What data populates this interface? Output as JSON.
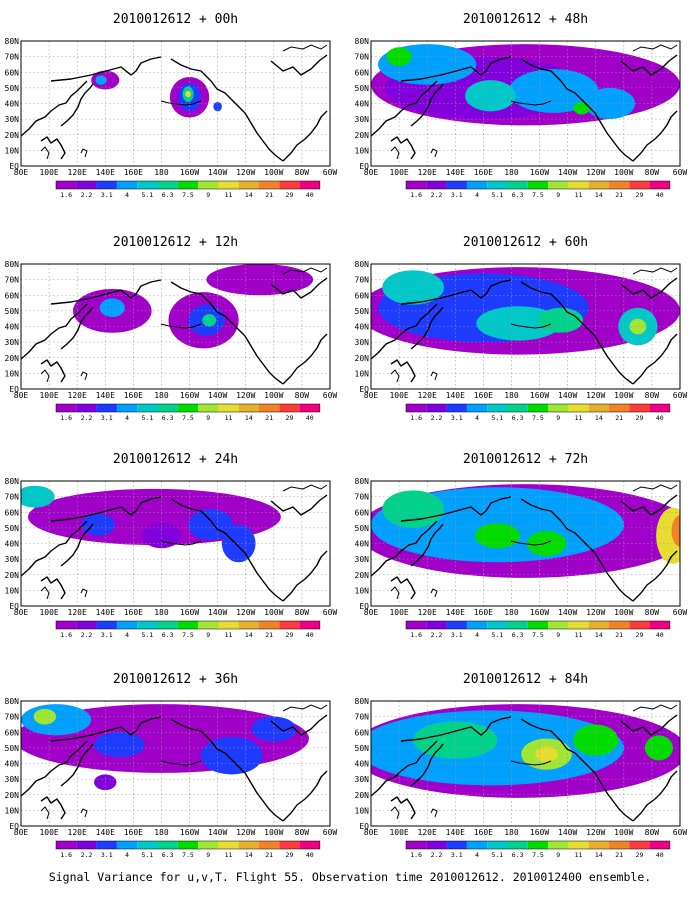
{
  "figure": {
    "caption": "Signal Variance for u,v,T. Flight 55. Observation time 2010012612. 2010012400 ensemble."
  },
  "map": {
    "x_ticks": [
      "80E",
      "100E",
      "120E",
      "140E",
      "160E",
      "180",
      "160W",
      "140W",
      "120W",
      "100W",
      "80W",
      "60W"
    ],
    "x_tick_lons": [
      80,
      100,
      120,
      140,
      160,
      180,
      200,
      220,
      240,
      260,
      280,
      300
    ],
    "y_ticks": [
      "EQ",
      "10N",
      "20N",
      "30N",
      "40N",
      "50N",
      "60N",
      "70N",
      "80N"
    ],
    "lon_range": [
      80,
      300
    ],
    "lat_range": [
      0,
      80
    ]
  },
  "colorbar": {
    "labels": [
      "1.6",
      "2.2",
      "3.1",
      "4",
      "5.1",
      "6.3",
      "7.5",
      "9",
      "11",
      "14",
      "21",
      "29",
      "40"
    ],
    "colors": [
      "#a000c8",
      "#8200dc",
      "#1e3cff",
      "#00a0ff",
      "#00c8c8",
      "#00d28c",
      "#00dc00",
      "#a0e632",
      "#e6dc32",
      "#e6af2d",
      "#f08228",
      "#fa3c3c",
      "#f00082"
    ]
  },
  "panels": [
    {
      "title": "2010012612 + 00h",
      "blobs": [
        {
          "lon": 140,
          "lat": 55,
          "rx": 10,
          "ry": 6,
          "level": 0
        },
        {
          "lon": 137,
          "lat": 55,
          "rx": 4,
          "ry": 3,
          "level": 3
        },
        {
          "lon": 200,
          "lat": 44,
          "rx": 14,
          "ry": 13,
          "level": 0
        },
        {
          "lon": 200,
          "lat": 44,
          "rx": 8,
          "ry": 9,
          "level": 2
        },
        {
          "lon": 199,
          "lat": 46,
          "rx": 4,
          "ry": 5,
          "level": 5
        },
        {
          "lon": 199,
          "lat": 46,
          "rx": 2,
          "ry": 2,
          "level": 8
        },
        {
          "lon": 220,
          "lat": 38,
          "rx": 3,
          "ry": 3,
          "level": 2
        }
      ]
    },
    {
      "title": "2010012612 + 48h",
      "blobs": [
        {
          "lon": 190,
          "lat": 52,
          "rx": 110,
          "ry": 26,
          "level": 0
        },
        {
          "lon": 160,
          "lat": 50,
          "rx": 70,
          "ry": 20,
          "level": 1
        },
        {
          "lon": 120,
          "lat": 65,
          "rx": 35,
          "ry": 13,
          "level": 3
        },
        {
          "lon": 100,
          "lat": 70,
          "rx": 9,
          "ry": 6,
          "level": 6
        },
        {
          "lon": 210,
          "lat": 48,
          "rx": 32,
          "ry": 14,
          "level": 3
        },
        {
          "lon": 165,
          "lat": 45,
          "rx": 18,
          "ry": 10,
          "level": 4
        },
        {
          "lon": 250,
          "lat": 40,
          "rx": 18,
          "ry": 10,
          "level": 3
        },
        {
          "lon": 230,
          "lat": 37,
          "rx": 6,
          "ry": 4,
          "level": 6
        }
      ]
    },
    {
      "title": "2010012612 + 12h",
      "blobs": [
        {
          "lon": 145,
          "lat": 50,
          "rx": 28,
          "ry": 14,
          "level": 0
        },
        {
          "lon": 145,
          "lat": 52,
          "rx": 9,
          "ry": 6,
          "level": 3
        },
        {
          "lon": 210,
          "lat": 44,
          "rx": 25,
          "ry": 18,
          "level": 0
        },
        {
          "lon": 212,
          "lat": 44,
          "rx": 13,
          "ry": 10,
          "level": 2
        },
        {
          "lon": 214,
          "lat": 44,
          "rx": 5,
          "ry": 4,
          "level": 5
        },
        {
          "lon": 250,
          "lat": 70,
          "rx": 38,
          "ry": 10,
          "level": 0
        }
      ]
    },
    {
      "title": "2010012612 + 60h",
      "blobs": [
        {
          "lon": 185,
          "lat": 50,
          "rx": 115,
          "ry": 28,
          "level": 0
        },
        {
          "lon": 160,
          "lat": 52,
          "rx": 75,
          "ry": 22,
          "level": 2
        },
        {
          "lon": 110,
          "lat": 65,
          "rx": 22,
          "ry": 11,
          "level": 4
        },
        {
          "lon": 185,
          "lat": 42,
          "rx": 30,
          "ry": 11,
          "level": 4
        },
        {
          "lon": 215,
          "lat": 44,
          "rx": 16,
          "ry": 8,
          "level": 5
        },
        {
          "lon": 270,
          "lat": 40,
          "rx": 14,
          "ry": 12,
          "level": 4
        },
        {
          "lon": 270,
          "lat": 40,
          "rx": 6,
          "ry": 5,
          "level": 7
        }
      ]
    },
    {
      "title": "2010012612 + 24h",
      "blobs": [
        {
          "lon": 175,
          "lat": 57,
          "rx": 90,
          "ry": 18,
          "level": 0
        },
        {
          "lon": 90,
          "lat": 70,
          "rx": 14,
          "ry": 7,
          "level": 4
        },
        {
          "lon": 135,
          "lat": 52,
          "rx": 12,
          "ry": 7,
          "level": 2
        },
        {
          "lon": 215,
          "lat": 52,
          "rx": 16,
          "ry": 10,
          "level": 2
        },
        {
          "lon": 235,
          "lat": 40,
          "rx": 12,
          "ry": 12,
          "level": 2
        },
        {
          "lon": 180,
          "lat": 45,
          "rx": 14,
          "ry": 8,
          "level": 1
        }
      ]
    },
    {
      "title": "2010012612 + 72h",
      "blobs": [
        {
          "lon": 190,
          "lat": 48,
          "rx": 120,
          "ry": 30,
          "level": 0
        },
        {
          "lon": 170,
          "lat": 52,
          "rx": 90,
          "ry": 24,
          "level": 3
        },
        {
          "lon": 110,
          "lat": 62,
          "rx": 22,
          "ry": 12,
          "level": 5
        },
        {
          "lon": 170,
          "lat": 45,
          "rx": 16,
          "ry": 8,
          "level": 6
        },
        {
          "lon": 205,
          "lat": 40,
          "rx": 14,
          "ry": 8,
          "level": 6
        },
        {
          "lon": 295,
          "lat": 45,
          "rx": 12,
          "ry": 18,
          "level": 8
        },
        {
          "lon": 300,
          "lat": 48,
          "rx": 6,
          "ry": 10,
          "level": 10
        }
      ]
    },
    {
      "title": "2010012612 + 36h",
      "blobs": [
        {
          "lon": 180,
          "lat": 56,
          "rx": 105,
          "ry": 22,
          "level": 0
        },
        {
          "lon": 105,
          "lat": 68,
          "rx": 25,
          "ry": 10,
          "level": 3
        },
        {
          "lon": 97,
          "lat": 70,
          "rx": 8,
          "ry": 5,
          "level": 7
        },
        {
          "lon": 150,
          "lat": 52,
          "rx": 18,
          "ry": 8,
          "level": 2
        },
        {
          "lon": 230,
          "lat": 45,
          "rx": 22,
          "ry": 12,
          "level": 2
        },
        {
          "lon": 260,
          "lat": 62,
          "rx": 16,
          "ry": 8,
          "level": 2
        },
        {
          "lon": 140,
          "lat": 28,
          "rx": 8,
          "ry": 5,
          "level": 1
        }
      ]
    },
    {
      "title": "2010012612 + 84h",
      "blobs": [
        {
          "lon": 185,
          "lat": 48,
          "rx": 120,
          "ry": 30,
          "level": 0
        },
        {
          "lon": 165,
          "lat": 50,
          "rx": 95,
          "ry": 24,
          "level": 3
        },
        {
          "lon": 140,
          "lat": 55,
          "rx": 30,
          "ry": 12,
          "level": 5
        },
        {
          "lon": 205,
          "lat": 46,
          "rx": 18,
          "ry": 10,
          "level": 7
        },
        {
          "lon": 205,
          "lat": 46,
          "rx": 8,
          "ry": 5,
          "level": 8
        },
        {
          "lon": 240,
          "lat": 55,
          "rx": 16,
          "ry": 10,
          "level": 6
        },
        {
          "lon": 285,
          "lat": 50,
          "rx": 10,
          "ry": 8,
          "level": 6
        }
      ]
    }
  ]
}
